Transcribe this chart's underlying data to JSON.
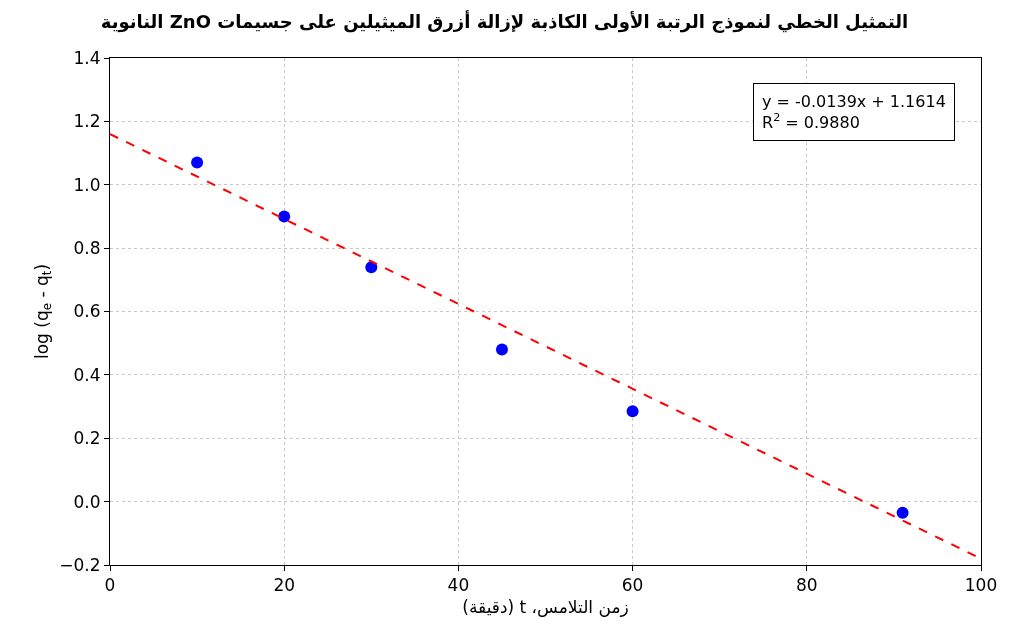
{
  "chart_data": {
    "type": "scatter",
    "title": "التمثيل الخطي لنموذج الرتبة الأولى الكاذبة لإزالة أزرق الميثيلين على جسيمات ZnO النانوية",
    "xlabel": "زمن التلامس، t (دقيقة)",
    "ylabel": "log (q$_{e}$ - q$_{t}$)",
    "annotations": [
      "y = -0.0139x + 1.1614",
      "R$^{2}$ = 0.9880"
    ],
    "series": [
      {
        "color": "#0000ff",
        "marker": "circle",
        "x": [
          10,
          20,
          30,
          45,
          60,
          91
        ],
        "values": [
          1.07,
          0.9,
          0.74,
          0.48,
          0.285,
          -0.035
        ]
      },
      {
        "type": "line",
        "color": "#ff0000",
        "line_style": "dashed",
        "x": [
          0,
          100
        ],
        "values": [
          1.16,
          -0.18
        ]
      }
    ],
    "xlim": [
      0,
      100
    ],
    "xticks": [
      0,
      20,
      40,
      60,
      80,
      100
    ],
    "ylim": [
      -0.2,
      1.4
    ],
    "yticks": [
      {
        "value": -0.2,
        "label": "−0.2"
      },
      {
        "value": 0,
        "label": "0.0"
      },
      {
        "value": 0.2,
        "label": "0.2"
      },
      {
        "value": 0.4,
        "label": "0.4"
      },
      {
        "value": 0.6,
        "label": "0.6"
      },
      {
        "value": 0.8,
        "label": "0.8"
      },
      {
        "value": 1,
        "label": "1.0"
      },
      {
        "value": 1.2,
        "label": "1.2"
      },
      {
        "value": 1.4,
        "label": "1.4"
      }
    ],
    "grid": true,
    "legend": false
  }
}
